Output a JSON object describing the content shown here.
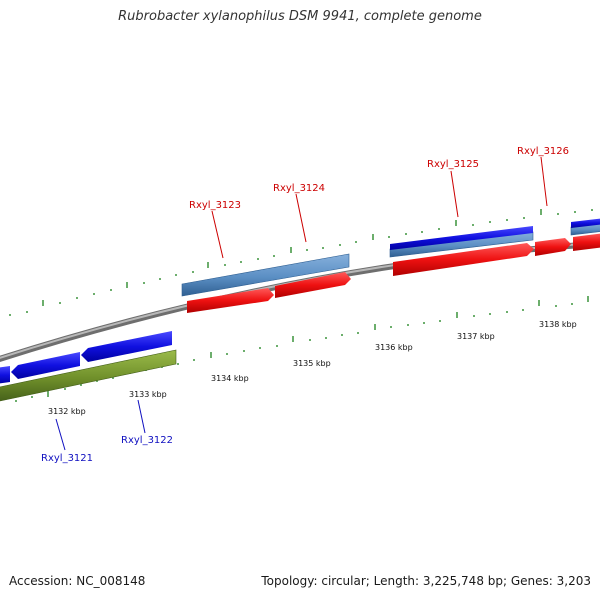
{
  "title": "Rubrobacter xylanophilus DSM 9941, complete genome",
  "footer": {
    "accession": "Accession: NC_008148",
    "summary": "Topology: circular; Length: 3,225,748 bp; Genes: 3,203"
  },
  "colors": {
    "backbone": "#8c8c8c",
    "tick": "#2e8b2e",
    "forward_gene": "#ee1111",
    "forward_label": "#cc0000",
    "reverse_gene": "#1010e0",
    "reverse_label": "#1010c0",
    "steelblue_band": "#5b8fc4",
    "olive_band": "#6f8f2a"
  },
  "kbp_labels": [
    "3132 kbp",
    "3133 kbp",
    "3134 kbp",
    "3135 kbp",
    "3136 kbp",
    "3137 kbp",
    "3138 kbp"
  ],
  "gene_labels": {
    "forward": [
      "Rxyl_3123",
      "Rxyl_3124",
      "Rxyl_3125",
      "Rxyl_3126"
    ],
    "reverse": [
      "Rxyl_3121",
      "Rxyl_3122"
    ]
  }
}
